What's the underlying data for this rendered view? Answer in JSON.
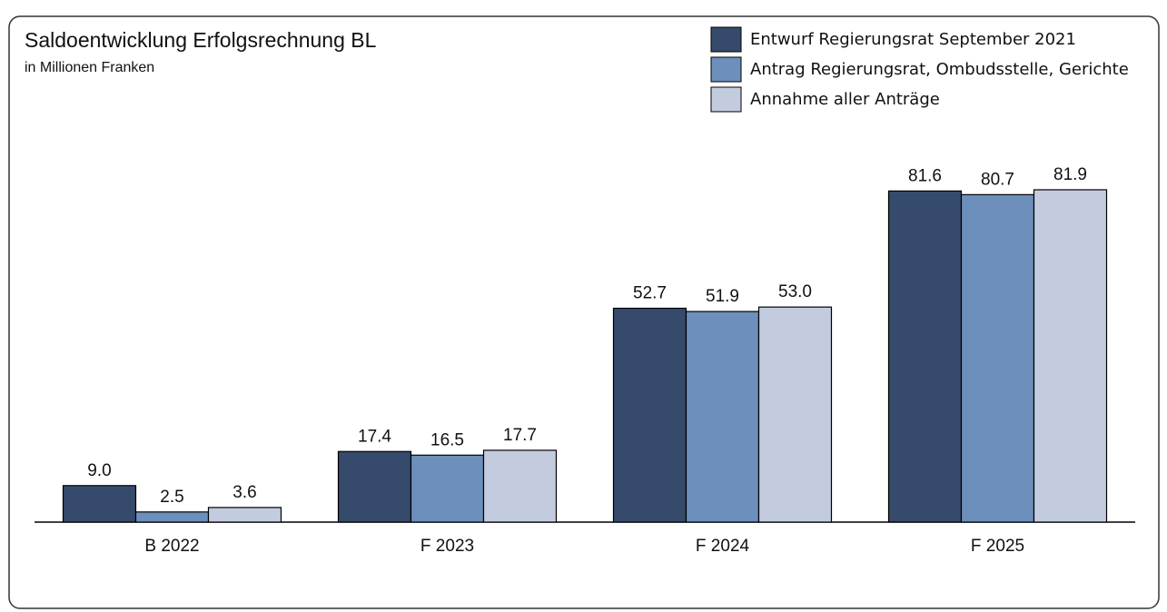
{
  "chart_data": {
    "type": "bar",
    "title": "Saldoentwicklung Erfolgsrechnung BL",
    "subtitle": "in Millionen Franken",
    "categories": [
      "B 2022",
      "F 2023",
      "F 2024",
      "F 2025"
    ],
    "series": [
      {
        "name": "Entwurf Regierungsrat September 2021",
        "color": "#364a6b",
        "values": [
          9.0,
          17.4,
          52.7,
          81.6
        ],
        "value_labels": [
          "9.0",
          "17.4",
          "52.7",
          "81.6"
        ]
      },
      {
        "name": "Antrag Regierungsrat, Ombudsstelle, Gerichte",
        "color": "#6d8fbb",
        "values": [
          2.5,
          16.5,
          51.9,
          80.7
        ],
        "value_labels": [
          "2.5",
          "16.5",
          "51.9",
          "80.7"
        ]
      },
      {
        "name": "Annahme aller Anträge",
        "color": "#c3ccdf",
        "values": [
          3.6,
          17.7,
          53.0,
          81.9
        ],
        "value_labels": [
          "3.6",
          "17.7",
          "53.0",
          "81.9"
        ]
      }
    ]
  }
}
